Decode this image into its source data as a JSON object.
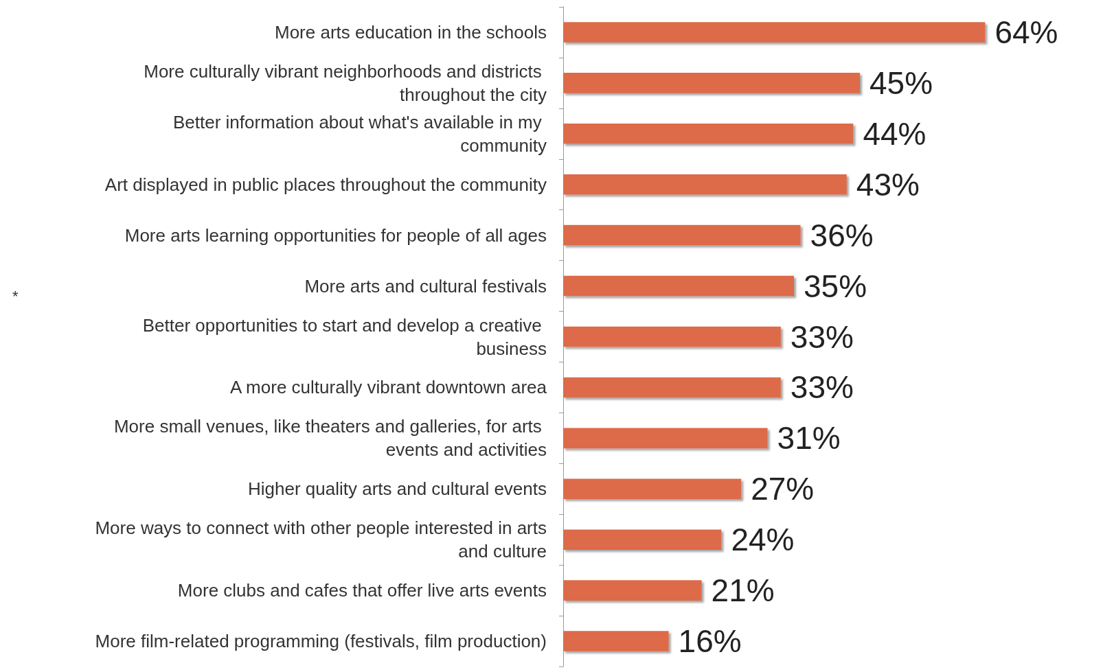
{
  "chart_data": {
    "type": "bar",
    "orientation": "horizontal",
    "categories": [
      "More arts education in the schools",
      "More culturally vibrant neighborhoods and districts throughout the city",
      "Better information about what's available in my community",
      "Art displayed in public places throughout the community",
      "More arts learning opportunities for people of all ages",
      "More arts and cultural festivals",
      "Better opportunities to start and develop a creative business",
      "A more culturally vibrant downtown area",
      "More small venues, like theaters and galleries, for arts events and activities",
      "Higher quality arts and cultural events",
      "More ways to connect with other people interested in arts and culture",
      "More clubs and cafes that offer live arts events",
      "More film-related programming (festivals, film production)"
    ],
    "values": [
      64,
      45,
      44,
      43,
      36,
      35,
      33,
      33,
      31,
      27,
      24,
      21,
      16
    ],
    "value_labels": [
      "64%",
      "45%",
      "44%",
      "43%",
      "36%",
      "35%",
      "33%",
      "33%",
      "31%",
      "27%",
      "24%",
      "21%",
      "16%"
    ],
    "color": "#dd6a4a",
    "tick_labels": "y",
    "annotations": [
      "*"
    ]
  }
}
